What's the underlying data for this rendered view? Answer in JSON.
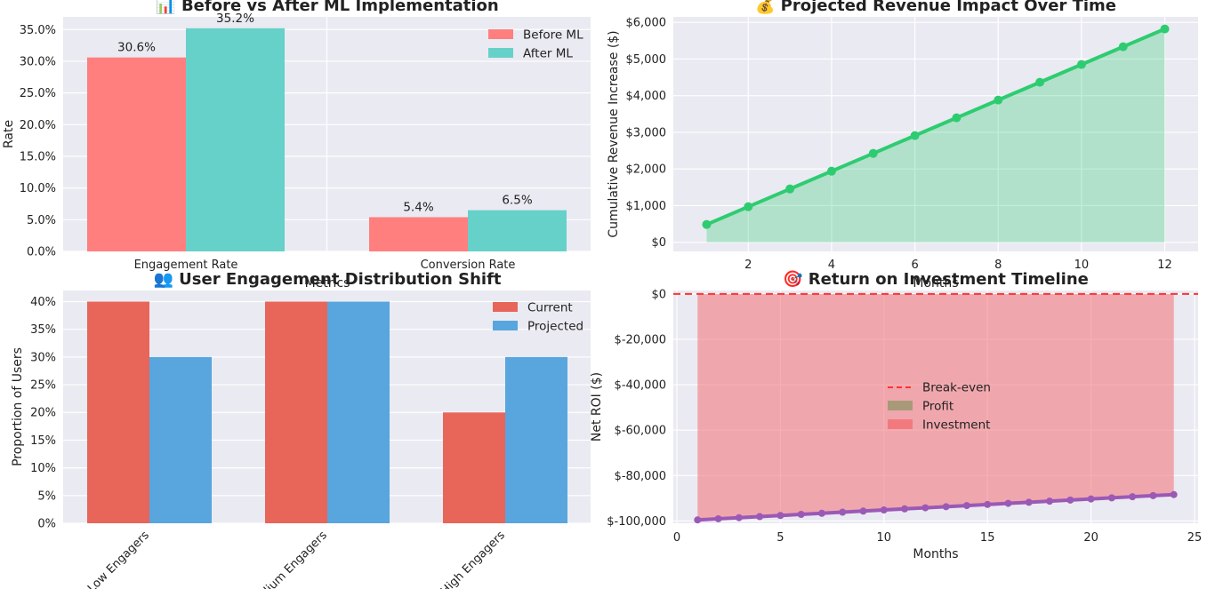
{
  "chart_data": [
    {
      "type": "bar",
      "title": "📊 Before vs After ML Implementation",
      "xlabel": "Metrics",
      "ylabel": "Rate",
      "categories": [
        "Engagement Rate",
        "Conversion Rate"
      ],
      "series": [
        {
          "name": "Before ML",
          "values": [
            0.306,
            0.054
          ],
          "color": "#ff7f7f"
        },
        {
          "name": "After ML",
          "values": [
            0.352,
            0.065
          ],
          "color": "#66d1c9"
        }
      ],
      "data_labels": [
        [
          "30.6%",
          "5.4%"
        ],
        [
          "35.2%",
          "6.5%"
        ]
      ],
      "ylim": [
        0,
        0.37
      ],
      "yticks": [
        0,
        0.05,
        0.1,
        0.15,
        0.2,
        0.25,
        0.3,
        0.35
      ],
      "ytick_labels": [
        "0.0%",
        "5.0%",
        "10.0%",
        "15.0%",
        "20.0%",
        "25.0%",
        "30.0%",
        "35.0%"
      ],
      "legend": "top-right",
      "grid": true
    },
    {
      "type": "area",
      "title": "💰 Projected Revenue Impact Over Time",
      "xlabel": "Months",
      "ylabel": "Cumulative Revenue Increase ($)",
      "x": [
        1,
        2,
        3,
        4,
        5,
        6,
        7,
        8,
        9,
        10,
        11,
        12
      ],
      "y": [
        485,
        970,
        1455,
        1940,
        2425,
        2910,
        3395,
        3880,
        4365,
        4850,
        5335,
        5820
      ],
      "color": "#2ecc71",
      "xlim": [
        0.2,
        12.8
      ],
      "ylim": [
        -250,
        6150
      ],
      "xticks": [
        2,
        4,
        6,
        8,
        10,
        12
      ],
      "yticks": [
        0,
        1000,
        2000,
        3000,
        4000,
        5000,
        6000
      ],
      "ytick_labels": [
        "$0",
        "$1,000",
        "$2,000",
        "$3,000",
        "$4,000",
        "$5,000",
        "$6,000"
      ],
      "grid": true
    },
    {
      "type": "bar",
      "title": "👥 User Engagement Distribution Shift",
      "xlabel": "",
      "ylabel": "Proportion of Users",
      "categories": [
        "Low Engagers",
        "Medium Engagers",
        "High Engagers"
      ],
      "series": [
        {
          "name": "Current",
          "values": [
            0.4,
            0.4,
            0.2
          ],
          "color": "#e8655a"
        },
        {
          "name": "Projected",
          "values": [
            0.3,
            0.4,
            0.3
          ],
          "color": "#58a6dd"
        }
      ],
      "ylim": [
        0,
        0.42
      ],
      "yticks": [
        0,
        0.05,
        0.1,
        0.15,
        0.2,
        0.25,
        0.3,
        0.35,
        0.4
      ],
      "ytick_labels": [
        "0%",
        "5%",
        "10%",
        "15%",
        "20%",
        "25%",
        "30%",
        "35%",
        "40%"
      ],
      "legend": "top-right",
      "grid": true
    },
    {
      "type": "line",
      "title": "🎯 Return on Investment Timeline",
      "xlabel": "Months",
      "ylabel": "Net ROI ($)",
      "x": [
        1,
        2,
        3,
        4,
        5,
        6,
        7,
        8,
        9,
        10,
        11,
        12,
        13,
        14,
        15,
        16,
        17,
        18,
        19,
        20,
        21,
        22,
        23,
        24
      ],
      "series": [
        {
          "name": "Net ROI",
          "values": [
            -99515,
            -99030,
            -98545,
            -98060,
            -97575,
            -97090,
            -96605,
            -96120,
            -95635,
            -95150,
            -94665,
            -94180,
            -93695,
            -93210,
            -92725,
            -92240,
            -91755,
            -91270,
            -90785,
            -90300,
            -89815,
            -89330,
            -88845,
            -88360
          ],
          "color": "#9b59b6"
        }
      ],
      "reference_line": {
        "name": "Break-even",
        "y": 0,
        "color": "#ff3333"
      },
      "fill_legend": [
        {
          "name": "Profit",
          "color": "#a89a78"
        },
        {
          "name": "Investment",
          "color": "#f27a7f"
        }
      ],
      "xlim": [
        0,
        25
      ],
      "ylim": [
        -101000,
        1500
      ],
      "xticks": [
        0,
        5,
        10,
        15,
        20,
        25
      ],
      "yticks": [
        0,
        -20000,
        -40000,
        -60000,
        -80000,
        -100000
      ],
      "ytick_labels": [
        "$0",
        "$-20,000",
        "$-40,000",
        "$-60,000",
        "$-80,000",
        "$-100,000"
      ],
      "legend": "center",
      "grid": true
    }
  ]
}
